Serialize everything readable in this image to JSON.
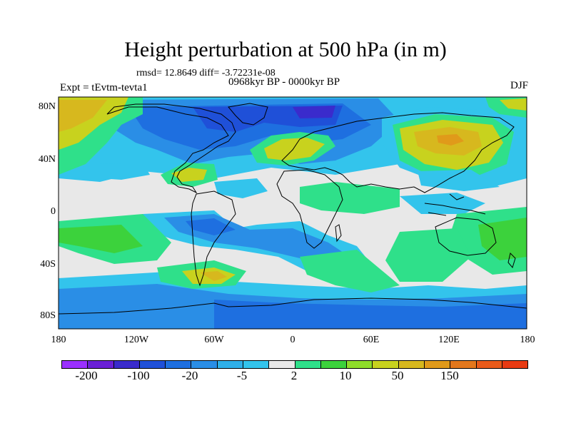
{
  "title": "Height perturbation at 500 hPa (in m)",
  "stats": "rmsd= 12.8649 diff= -3.72231e-08",
  "period": "0968kyr BP - 0000kyr BP",
  "experiment": "Expt = tEvtm-tevta1",
  "season": "DJF",
  "axes": {
    "lat_labels": [
      "80N",
      "40N",
      "0",
      "40S",
      "80S"
    ],
    "lon_labels": [
      "180",
      "120W",
      "60W",
      "0",
      "60E",
      "120E",
      "180"
    ]
  },
  "legend": {
    "colors": [
      "#9b30ff",
      "#6a1fd6",
      "#3a2bcc",
      "#1f50d8",
      "#1e6fe0",
      "#2a8ee6",
      "#2fb0e8",
      "#33c4ec",
      "#e8e8e8",
      "#2fe08a",
      "#3cd23c",
      "#8fdd2a",
      "#c8d21e",
      "#d7b81e",
      "#e09a1a",
      "#e3771c",
      "#e85a1a",
      "#e83a12"
    ],
    "labels": [
      "-200",
      "-100",
      "-20",
      "-5",
      "2",
      "10",
      "50",
      "150"
    ]
  },
  "palette": {
    "neutral": "#e8e8e8",
    "light_blue": "#33c4ec",
    "mid_blue": "#2a8ee6",
    "blue": "#1e6fe0",
    "deep_blue": "#1f50d8",
    "indigo": "#3a2bcc",
    "green": "#2fe08a",
    "lime": "#3cd23c",
    "yellow_green": "#8fdd2a",
    "olive": "#c8d21e",
    "gold": "#d7b81e",
    "orange": "#e09a1a",
    "coast": "#000000"
  }
}
